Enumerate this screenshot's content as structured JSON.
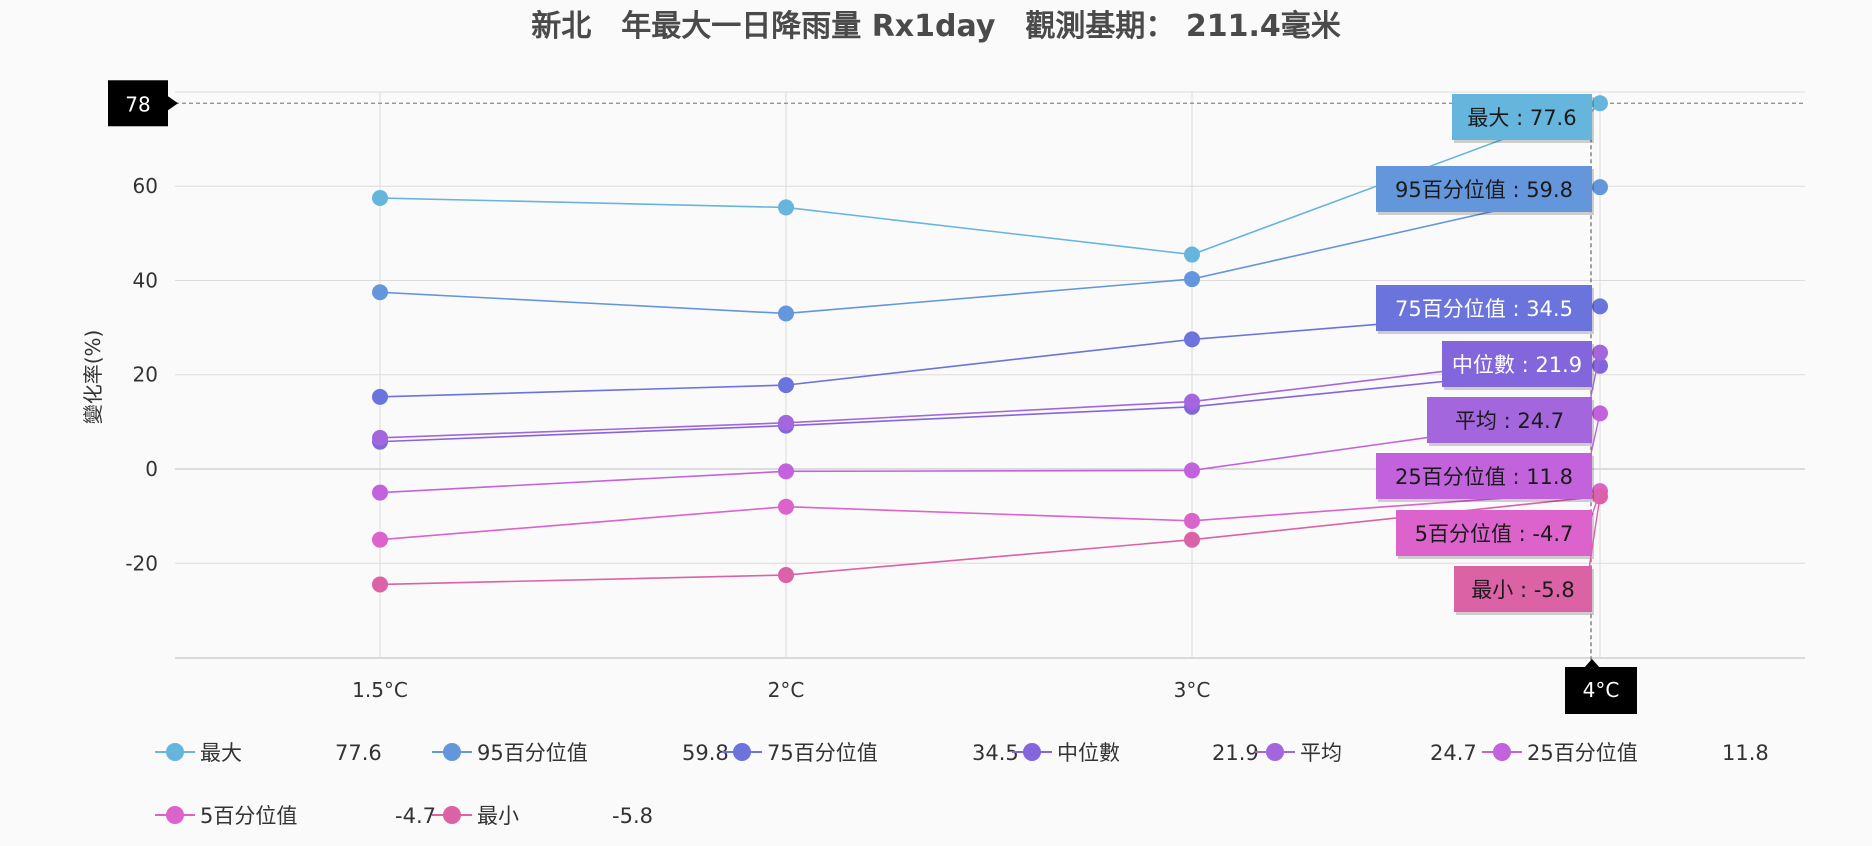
{
  "chart_data": {
    "type": "line",
    "title": "新北　年最大一日降雨量 Rx1day　觀測基期： 211.4毫米",
    "ylabel": "變化率(%)",
    "xlabel": "",
    "categories": [
      "1.5°C",
      "2°C",
      "3°C",
      "4°C"
    ],
    "ylim": [
      -40,
      80
    ],
    "yticks": [
      -20,
      0,
      20,
      40,
      60,
      80
    ],
    "grid": true,
    "legend_position": "bottom",
    "crosshair": {
      "x_label": "4°C",
      "y_label": "78"
    },
    "series": [
      {
        "name": "最大",
        "values": [
          57.5,
          55.5,
          45.5,
          77.6
        ],
        "color": "#65b5dc",
        "tooltip": "最大 : 77.6",
        "legend_value": "77.6",
        "tip_text_color": "#1a1a1a"
      },
      {
        "name": "95百分位值",
        "values": [
          37.5,
          33,
          40.3,
          59.8
        ],
        "color": "#6496dc",
        "tooltip": "95百分位值 : 59.8",
        "legend_value": "59.8",
        "tip_text_color": "#1a1a1a"
      },
      {
        "name": "75百分位值",
        "values": [
          15.3,
          17.8,
          27.5,
          34.5
        ],
        "color": "#6b73dc",
        "tooltip": "75百分位值 : 34.5",
        "legend_value": "34.5",
        "tip_text_color": "#ffffff"
      },
      {
        "name": "中位數",
        "values": [
          5.8,
          9.2,
          13.2,
          21.9
        ],
        "color": "#8466dc",
        "tooltip": "中位數 : 21.9",
        "legend_value": "21.9",
        "tip_text_color": "#ffffff"
      },
      {
        "name": "平均",
        "values": [
          6.6,
          9.8,
          14.3,
          24.7
        ],
        "color": "#a466dc",
        "tooltip": "平均 : 24.7",
        "legend_value": "24.7",
        "tip_text_color": "#1a1a1a"
      },
      {
        "name": "25百分位值",
        "values": [
          -5,
          -0.5,
          -0.3,
          11.8
        ],
        "color": "#c262dc",
        "tooltip": "25百分位值 : 11.8",
        "legend_value": "11.8",
        "tip_text_color": "#1a1a1a"
      },
      {
        "name": "5百分位值",
        "values": [
          -15,
          -8,
          -11,
          -4.7
        ],
        "color": "#dc62cc",
        "tooltip": "5百分位值 : -4.7",
        "legend_value": "-4.7",
        "tip_text_color": "#1a1a1a"
      },
      {
        "name": "最小",
        "values": [
          -24.5,
          -22.5,
          -15,
          -5.8
        ],
        "color": "#dc62a6",
        "tooltip": "最小 : -5.8",
        "legend_value": "-5.8",
        "tip_text_color": "#1a1a1a"
      }
    ]
  }
}
